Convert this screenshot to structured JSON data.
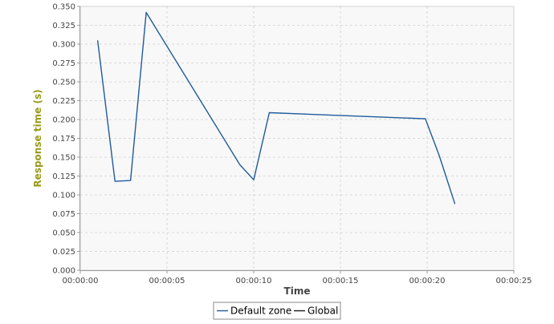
{
  "colors": {
    "plot_background": "#F8F8F8",
    "grid": "#D0D0D0",
    "axis": "#999999",
    "ylabel_color": "#9A9A1A",
    "xlabel_color": "#444444",
    "legend_border": "#888888"
  },
  "chart_data": {
    "type": "line",
    "title": "",
    "xlabel": "Time",
    "ylabel": "Response time (s)",
    "xlim": [
      0,
      25
    ],
    "ylim": [
      0,
      0.35
    ],
    "grid": true,
    "legend_placement": "bottom-center",
    "x_ticks": [
      {
        "value": 0,
        "label": "00:00:00"
      },
      {
        "value": 5,
        "label": "00:00:05"
      },
      {
        "value": 10,
        "label": "00:00:10"
      },
      {
        "value": 15,
        "label": "00:00:15"
      },
      {
        "value": 20,
        "label": "00:00:20"
      },
      {
        "value": 25,
        "label": "00:00:25"
      }
    ],
    "y_ticks": [
      {
        "value": 0.0,
        "label": "0.000"
      },
      {
        "value": 0.025,
        "label": "0.025"
      },
      {
        "value": 0.05,
        "label": "0.050"
      },
      {
        "value": 0.075,
        "label": "0.075"
      },
      {
        "value": 0.1,
        "label": "0.100"
      },
      {
        "value": 0.125,
        "label": "0.125"
      },
      {
        "value": 0.15,
        "label": "0.150"
      },
      {
        "value": 0.175,
        "label": "0.175"
      },
      {
        "value": 0.2,
        "label": "0.200"
      },
      {
        "value": 0.225,
        "label": "0.225"
      },
      {
        "value": 0.25,
        "label": "0.250"
      },
      {
        "value": 0.275,
        "label": "0.275"
      },
      {
        "value": 0.3,
        "label": "0.300"
      },
      {
        "value": 0.325,
        "label": "0.325"
      },
      {
        "value": 0.35,
        "label": "0.350"
      }
    ],
    "series": [
      {
        "name": "Default zone",
        "color": "#1F5B9C",
        "x": [
          1.0,
          2.0,
          2.9,
          3.8,
          9.2,
          10.0,
          10.9,
          19.9,
          20.7,
          21.6
        ],
        "y": [
          0.305,
          0.118,
          0.119,
          0.342,
          0.14,
          0.12,
          0.209,
          0.201,
          0.152,
          0.088
        ]
      },
      {
        "name": "Global",
        "color": "#1A1A1A",
        "x": [],
        "y": []
      }
    ]
  }
}
